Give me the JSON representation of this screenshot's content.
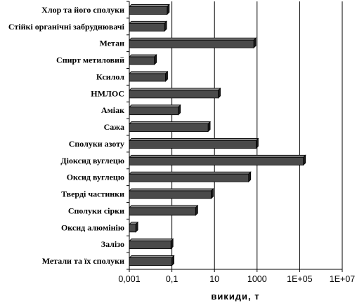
{
  "chart_data": {
    "type": "bar",
    "orientation": "horizontal",
    "x_scale": "log",
    "xlim": [
      0.001,
      10000000
    ],
    "xlabel": "викиди, т",
    "ylabel": "",
    "title": "",
    "grid": "vertical",
    "colors": {
      "bar_front": "#4a4a4a",
      "bar_top": "#8a8a8a",
      "bar_side": "#1a1a1a",
      "grid": "#000000"
    },
    "x_ticks": [
      "0,001",
      "0,1",
      "10",
      "1000",
      "1E+05",
      "1E+07"
    ],
    "categories": [
      "Хлор та його сполуки",
      "Стійкі органічні забруднювачі",
      "Метан",
      "Спирт метиловий",
      "Ксилол",
      "НМЛОС",
      "Аміак",
      "Сажа",
      "Сполуки азоту",
      "Діоксид вуглецю",
      "Оксид вуглецю",
      "Тверді частинки",
      "Сполуки сірки",
      "Оксид алюмінію",
      "Залізо",
      "Метали та їх сполуки"
    ],
    "values": [
      0.06,
      0.045,
      700,
      0.015,
      0.05,
      15,
      0.2,
      5,
      900,
      150000,
      400,
      7,
      1.3,
      0.002,
      0.09,
      0.1
    ]
  }
}
